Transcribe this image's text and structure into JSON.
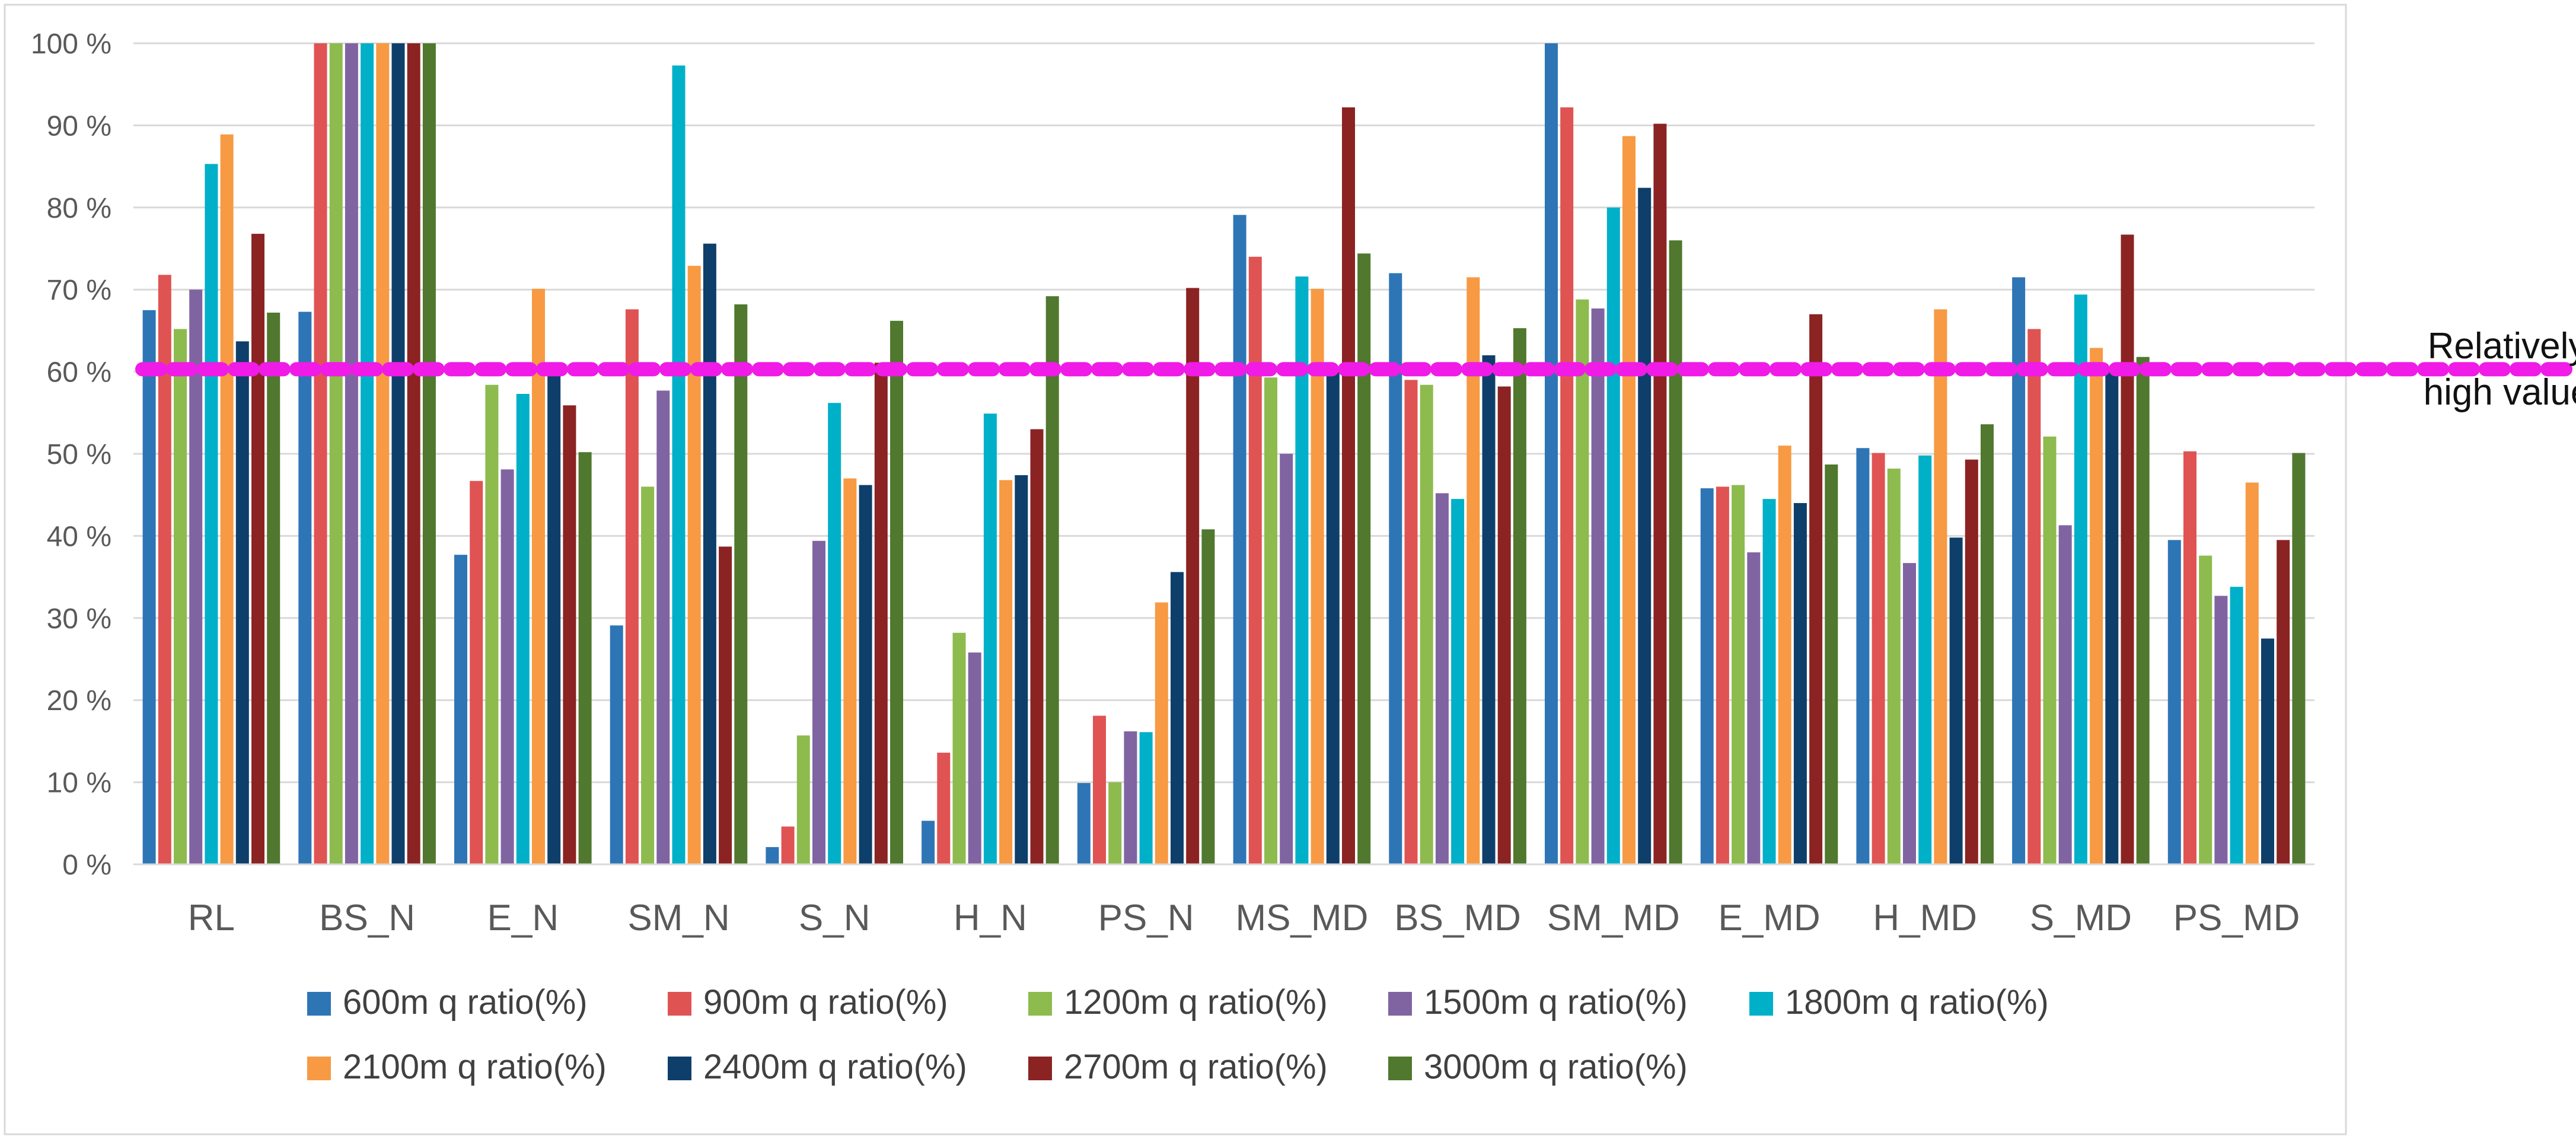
{
  "chart_data": {
    "type": "bar",
    "title": "",
    "xlabel": "",
    "ylabel": "",
    "ylim": [
      0,
      100
    ],
    "ytick_step": 10,
    "ytick_suffix": " %",
    "grid": true,
    "legend_position": "bottom",
    "categories": [
      "RL",
      "BS_N",
      "E_N",
      "SM_N",
      "S_N",
      "H_N",
      "PS_N",
      "MS_MD",
      "BS_MD",
      "SM_MD",
      "E_MD",
      "H_MD",
      "S_MD",
      "PS_MD"
    ],
    "series": [
      {
        "name": "600m q ratio(%)",
        "color": "#2E75B6",
        "values": [
          67.5,
          67.3,
          37.7,
          29.1,
          2.1,
          5.3,
          9.9,
          79.1,
          72.0,
          100.0,
          45.8,
          50.7,
          71.5,
          39.5
        ]
      },
      {
        "name": "900m q ratio(%)",
        "color": "#E05353",
        "values": [
          71.8,
          100.0,
          46.7,
          67.6,
          4.6,
          13.6,
          18.1,
          74.0,
          59.0,
          92.2,
          46.0,
          50.1,
          65.2,
          50.3
        ]
      },
      {
        "name": "1200m q ratio(%)",
        "color": "#8DBB4E",
        "values": [
          65.2,
          100.0,
          58.4,
          46.0,
          15.7,
          28.2,
          10.0,
          59.3,
          58.4,
          68.8,
          46.2,
          48.2,
          52.1,
          37.6
        ]
      },
      {
        "name": "1500m q ratio(%)",
        "color": "#8064A2",
        "values": [
          70.0,
          100.0,
          48.1,
          57.7,
          39.4,
          25.8,
          16.2,
          50.0,
          45.2,
          67.7,
          38.0,
          36.7,
          41.3,
          32.7
        ]
      },
      {
        "name": "1800m q ratio(%)",
        "color": "#00B0C8",
        "values": [
          85.3,
          100.0,
          57.3,
          97.3,
          56.2,
          54.9,
          16.1,
          71.6,
          44.5,
          80.0,
          44.5,
          49.8,
          69.4,
          33.8
        ]
      },
      {
        "name": "2100m q ratio(%)",
        "color": "#F79A43",
        "values": [
          88.9,
          100.0,
          70.1,
          72.9,
          47.0,
          46.8,
          31.9,
          70.1,
          71.5,
          88.7,
          51.0,
          67.6,
          62.9,
          46.5
        ]
      },
      {
        "name": "2400m q ratio(%)",
        "color": "#0E3F6B",
        "values": [
          63.7,
          100.0,
          60.9,
          75.6,
          46.2,
          47.4,
          35.6,
          60.0,
          62.0,
          82.4,
          44.0,
          39.8,
          60.0,
          27.5
        ]
      },
      {
        "name": "2700m q ratio(%)",
        "color": "#8B2323",
        "values": [
          76.8,
          100.0,
          55.9,
          38.7,
          61.1,
          53.0,
          70.2,
          92.2,
          58.2,
          90.2,
          67.0,
          49.3,
          76.7,
          39.5
        ]
      },
      {
        "name": "3000m q ratio(%)",
        "color": "#50782E",
        "values": [
          67.2,
          100.0,
          50.2,
          68.2,
          66.2,
          69.2,
          40.8,
          74.4,
          65.3,
          76.0,
          48.7,
          53.6,
          61.8,
          50.1
        ]
      }
    ],
    "reference_line": {
      "value": 60.3,
      "color": "#F01BE6",
      "style": "dashed"
    },
    "annotation": {
      "line1": "Relatively",
      "line2": "high value"
    }
  }
}
